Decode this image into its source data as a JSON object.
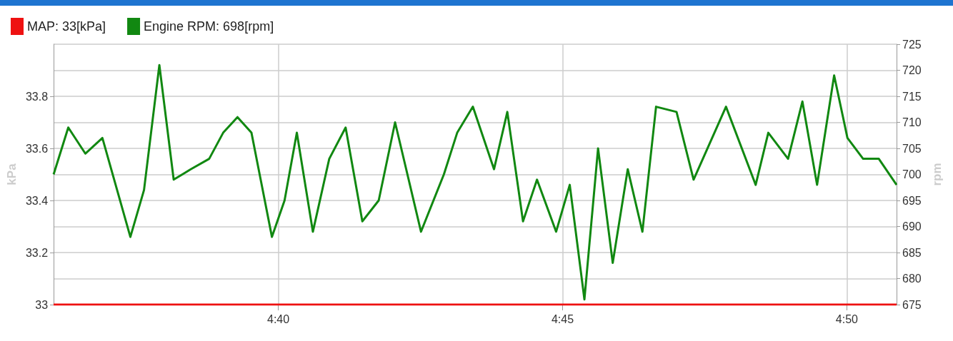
{
  "chart_data": {
    "type": "line",
    "ylabel": "kPa",
    "y2label": "rpm",
    "xlim": [
      4.6008,
      4.8479
    ],
    "xticks": [
      {
        "value": 4.66667,
        "label": "4:40"
      },
      {
        "value": 4.75,
        "label": "4:45"
      },
      {
        "value": 4.83333,
        "label": "4:50"
      }
    ],
    "ylim": [
      33,
      34
    ],
    "yticks": [
      33,
      33.2,
      33.4,
      33.6,
      33.8
    ],
    "y2lim": [
      675,
      725
    ],
    "y2ticks": [
      675,
      680,
      685,
      690,
      695,
      700,
      705,
      710,
      715,
      720,
      725
    ],
    "grid": true,
    "legend": "top left",
    "marker": "none",
    "line_style": "solid",
    "series": [
      {
        "name": "MAP: 33[kPa]",
        "color": "#ee1111",
        "x": [
          4.6008,
          4.8479
        ],
        "values": [
          33,
          33
        ]
      },
      {
        "name": "Engine RPM: 698[rpm]",
        "color": "#118811",
        "axis": "y2",
        "x": [
          4.6008,
          4.6051,
          4.6101,
          4.6151,
          4.6233,
          4.6273,
          4.6318,
          4.636,
          4.641,
          4.6464,
          4.6505,
          4.6547,
          4.6588,
          4.6648,
          4.6685,
          4.6721,
          4.6768,
          4.6816,
          4.6864,
          4.6913,
          4.6961,
          4.7009,
          4.7085,
          4.7152,
          4.7191,
          4.7237,
          4.7299,
          4.7338,
          4.7384,
          4.7425,
          4.7481,
          4.7521,
          4.7564,
          4.7604,
          4.7647,
          4.7691,
          4.7734,
          4.7774,
          4.7834,
          4.7884,
          4.7979,
          4.8066,
          4.8103,
          4.8161,
          4.8203,
          4.8246,
          4.8296,
          4.8335,
          4.8381,
          4.8427,
          4.8479
        ],
        "values": [
          700,
          709,
          704,
          707,
          688,
          697,
          721,
          699,
          701,
          703,
          708,
          711,
          708,
          688,
          695,
          708,
          689,
          703,
          709,
          691,
          695,
          710,
          689,
          700,
          708,
          713,
          701,
          712,
          691,
          699,
          689,
          698,
          676,
          705,
          683,
          701,
          689,
          713,
          712,
          699,
          713,
          698,
          708,
          703,
          714,
          698,
          719,
          707,
          703,
          703,
          698
        ]
      }
    ]
  }
}
